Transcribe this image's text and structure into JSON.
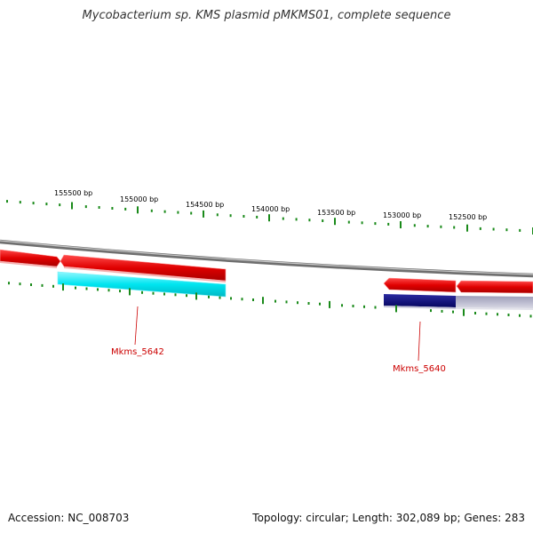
{
  "title": "Mycobacterium sp. KMS plasmid pMKMS01, complete sequence",
  "accession": "Accession: NC_008703",
  "summary": "Topology: circular; Length: 302,089 bp; Genes: 283",
  "position_labels": [
    "155500 bp",
    "155000 bp",
    "154500 bp",
    "154000 bp",
    "153500 bp",
    "153000 bp",
    "152500 bp"
  ],
  "gene_labels": [
    "Mkms_5642",
    "Mkms_5640"
  ],
  "colors": {
    "forward_gene": "#e00000",
    "cds_cyan": "#00e5f0",
    "cds_navy": "#0a0a80",
    "cds_grey": "#b4b4c8",
    "backbone": "#888888",
    "tick": "#1a8a1a",
    "label_line": "#cc0000"
  }
}
